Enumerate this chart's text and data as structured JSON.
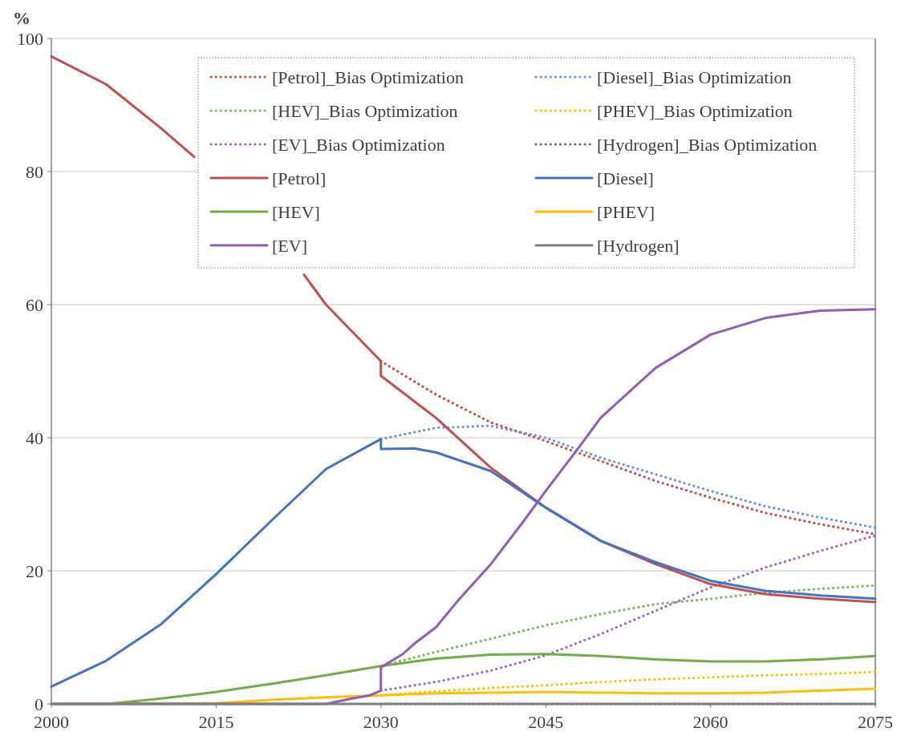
{
  "chart_data": {
    "type": "line",
    "ylabel": "%",
    "xlim": [
      2000,
      2075
    ],
    "xticks": [
      2000,
      2015,
      2030,
      2045,
      2060,
      2075
    ],
    "ylim": [
      0,
      100
    ],
    "yticks": [
      0,
      20,
      40,
      60,
      80,
      100
    ],
    "grid": "y",
    "legend": "top right",
    "marker": "none",
    "series": [
      {
        "name": "[Petrol]_Bias Optimization",
        "color": "#d04a42",
        "line_style": "dotted",
        "x": [
          2030,
          2035,
          2040,
          2045,
          2050,
          2055,
          2060,
          2065,
          2070,
          2075
        ],
        "values": [
          51.5,
          46.5,
          42.3,
          39.5,
          36.5,
          33.5,
          31,
          28.7,
          27,
          25.5
        ]
      },
      {
        "name": "[Diesel]_Bias Optimization",
        "color": "#6f95d9",
        "line_style": "dotted",
        "x": [
          2030,
          2035,
          2040,
          2045,
          2050,
          2055,
          2060,
          2065,
          2070,
          2075
        ],
        "values": [
          39.8,
          41.5,
          41.8,
          40,
          37,
          34.5,
          32,
          29.7,
          28,
          26.5
        ]
      },
      {
        "name": "[HEV]_Bias Optimization",
        "color": "#7fb65a",
        "line_style": "dotted",
        "x": [
          2030,
          2035,
          2040,
          2045,
          2050,
          2055,
          2060,
          2065,
          2070,
          2075
        ],
        "values": [
          5.7,
          7.8,
          9.8,
          11.8,
          13.5,
          15,
          15.8,
          16.7,
          17.3,
          17.8
        ]
      },
      {
        "name": "[PHEV]_Bias Optimization",
        "color": "#ffc000",
        "line_style": "dotted",
        "x": [
          2030,
          2035,
          2040,
          2045,
          2050,
          2055,
          2060,
          2065,
          2070,
          2075
        ],
        "values": [
          1.3,
          1.9,
          2.4,
          2.8,
          3.3,
          3.7,
          4,
          4.3,
          4.5,
          4.8
        ]
      },
      {
        "name": "[EV]_Bias Optimization",
        "color": "#9a6cc1",
        "line_style": "dotted",
        "x": [
          2030,
          2035,
          2040,
          2045,
          2050,
          2055,
          2060,
          2065,
          2070,
          2075
        ],
        "values": [
          2,
          3.3,
          5,
          7.3,
          10.5,
          14,
          17.5,
          20.5,
          23,
          25.3
        ]
      },
      {
        "name": "[Hydrogen]_Bias Optimization",
        "color": "#6e6e6e",
        "line_style": "dotted",
        "x": [
          2030,
          2075
        ],
        "values": [
          0,
          0
        ]
      },
      {
        "name": "[Petrol]",
        "color": "#c0504d",
        "line_style": "solid",
        "x": [
          2000,
          2005,
          2010,
          2013,
          2015,
          2020,
          2023,
          2025,
          2030,
          2030,
          2035,
          2040,
          2045,
          2050,
          2055,
          2060,
          2065,
          2070,
          2075
        ],
        "values": [
          97.3,
          93.1,
          86.5,
          82.2,
          null,
          null,
          64.5,
          60,
          51.5,
          49.3,
          43,
          35.5,
          29.5,
          24.5,
          21,
          18,
          16.5,
          15.8,
          15.3
        ]
      },
      {
        "name": "[Diesel]",
        "color": "#4472c4",
        "line_style": "solid",
        "x": [
          2000,
          2005,
          2010,
          2015,
          2020,
          2025,
          2030,
          2030,
          2033,
          2035,
          2040,
          2045,
          2050,
          2055,
          2060,
          2065,
          2070,
          2075
        ],
        "values": [
          2.6,
          6.5,
          12,
          19.5,
          27.5,
          35.3,
          39.8,
          38.3,
          38.4,
          37.8,
          35,
          29.5,
          24.5,
          21.3,
          18.5,
          17,
          16.3,
          15.8
        ]
      },
      {
        "name": "[HEV]",
        "color": "#70ad47",
        "line_style": "solid",
        "x": [
          2000,
          2005,
          2007,
          2010,
          2015,
          2020,
          2025,
          2030,
          2035,
          2040,
          2045,
          2050,
          2055,
          2060,
          2065,
          2070,
          2075
        ],
        "values": [
          0,
          0,
          0.3,
          0.8,
          1.8,
          3,
          4.3,
          5.7,
          6.8,
          7.4,
          7.5,
          7.2,
          6.7,
          6.4,
          6.4,
          6.7,
          7.2
        ]
      },
      {
        "name": "[PHEV]",
        "color": "#ffc000",
        "line_style": "solid",
        "x": [
          2000,
          2015,
          2020,
          2025,
          2030,
          2035,
          2040,
          2045,
          2050,
          2055,
          2060,
          2065,
          2070,
          2075
        ],
        "values": [
          0,
          0.1,
          0.6,
          1,
          1.3,
          1.6,
          1.7,
          1.8,
          1.7,
          1.6,
          1.6,
          1.7,
          2,
          2.3
        ]
      },
      {
        "name": "[EV]",
        "color": "#8e5fb4",
        "line_style": "solid",
        "x": [
          2000,
          2025,
          2027,
          2029,
          2030,
          2030,
          2031,
          2032,
          2033,
          2035,
          2037,
          2040,
          2043,
          2045,
          2048,
          2050,
          2055,
          2060,
          2065,
          2070,
          2075
        ],
        "values": [
          0,
          0,
          0.7,
          1.3,
          2,
          5.5,
          6.5,
          7.5,
          9,
          11.5,
          15.5,
          21,
          27.5,
          32,
          38.5,
          43,
          50.5,
          55.5,
          58,
          59.1,
          59.3
        ]
      },
      {
        "name": "[Hydrogen]",
        "color": "#7f7f7f",
        "line_style": "solid",
        "x": [
          2000,
          2075
        ],
        "values": [
          0,
          0
        ]
      }
    ]
  }
}
